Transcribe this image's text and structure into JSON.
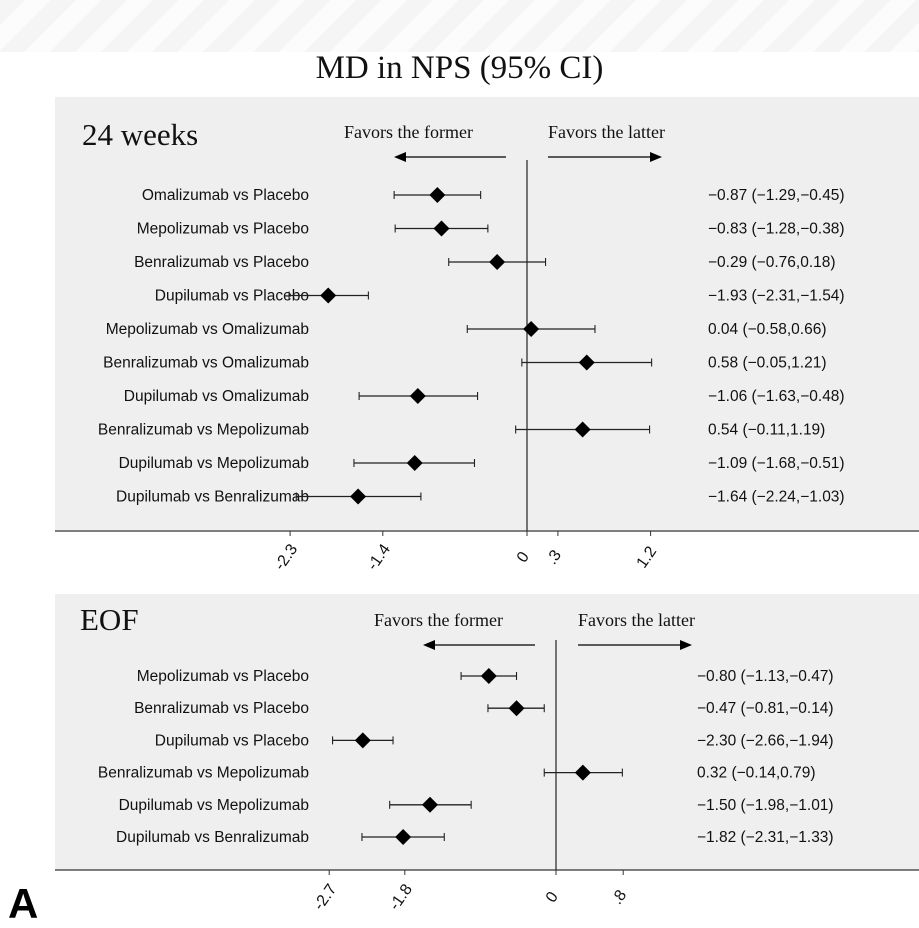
{
  "title": "MD in NPS (95% CI)",
  "figure_label": "A",
  "chart_data": [
    {
      "type": "forest",
      "panel_label": "24 weeks",
      "favors_left": "Favors the former",
      "favors_right": "Favors the latter",
      "xticks": [
        -2.3,
        -1.4,
        0,
        0.3,
        1.2
      ],
      "xtick_labels": [
        "-2.3",
        "-1.4",
        "0",
        ".3",
        "1.2"
      ],
      "null_line": 0,
      "rows": [
        {
          "label": "Omalizumab vs Placebo",
          "est": -0.87,
          "lo": -1.29,
          "hi": -0.45,
          "text": "−0.87 (−1.29,−0.45)"
        },
        {
          "label": "Mepolizumab vs Placebo",
          "est": -0.83,
          "lo": -1.28,
          "hi": -0.38,
          "text": "−0.83 (−1.28,−0.38)"
        },
        {
          "label": "Benralizumab vs Placebo",
          "est": -0.29,
          "lo": -0.76,
          "hi": 0.18,
          "text": "−0.29 (−0.76,0.18)"
        },
        {
          "label": "Dupilumab vs Placebo",
          "est": -1.93,
          "lo": -2.31,
          "hi": -1.54,
          "text": "−1.93 (−2.31,−1.54)"
        },
        {
          "label": "Mepolizumab vs Omalizumab",
          "est": 0.04,
          "lo": -0.58,
          "hi": 0.66,
          "text": "0.04 (−0.58,0.66)"
        },
        {
          "label": "Benralizumab vs Omalizumab",
          "est": 0.58,
          "lo": -0.05,
          "hi": 1.21,
          "text": "0.58 (−0.05,1.21)"
        },
        {
          "label": "Dupilumab vs Omalizumab",
          "est": -1.06,
          "lo": -1.63,
          "hi": -0.48,
          "text": "−1.06 (−1.63,−0.48)"
        },
        {
          "label": "Benralizumab vs Mepolizumab",
          "est": 0.54,
          "lo": -0.11,
          "hi": 1.19,
          "text": "0.54 (−0.11,1.19)"
        },
        {
          "label": "Dupilumab vs Mepolizumab",
          "est": -1.09,
          "lo": -1.68,
          "hi": -0.51,
          "text": "−1.09 (−1.68,−0.51)"
        },
        {
          "label": "Dupilumab vs Benralizumab",
          "est": -1.64,
          "lo": -2.24,
          "hi": -1.03,
          "text": "−1.64 (−2.24,−1.03)"
        }
      ]
    },
    {
      "type": "forest",
      "panel_label": "EOF",
      "favors_left": "Favors the former",
      "favors_right": "Favors the latter",
      "xticks": [
        -2.7,
        -1.8,
        0,
        0.8
      ],
      "xtick_labels": [
        "-2.7",
        "-1.8",
        "0",
        ".8"
      ],
      "null_line": 0,
      "rows": [
        {
          "label": "Mepolizumab vs Placebo",
          "est": -0.8,
          "lo": -1.13,
          "hi": -0.47,
          "text": "−0.80 (−1.13,−0.47)"
        },
        {
          "label": "Benralizumab vs Placebo",
          "est": -0.47,
          "lo": -0.81,
          "hi": -0.14,
          "text": "−0.47 (−0.81,−0.14)"
        },
        {
          "label": "Dupilumab vs Placebo",
          "est": -2.3,
          "lo": -2.66,
          "hi": -1.94,
          "text": "−2.30 (−2.66,−1.94)"
        },
        {
          "label": "Benralizumab vs Mepolizumab",
          "est": 0.32,
          "lo": -0.14,
          "hi": 0.79,
          "text": "0.32 (−0.14,0.79)"
        },
        {
          "label": "Dupilumab vs Mepolizumab",
          "est": -1.5,
          "lo": -1.98,
          "hi": -1.01,
          "text": "−1.50 (−1.98,−1.01)"
        },
        {
          "label": "Dupilumab vs Benralizumab",
          "est": -1.82,
          "lo": -2.31,
          "hi": -1.33,
          "text": "−1.82 (−2.31,−1.33)"
        }
      ]
    }
  ]
}
